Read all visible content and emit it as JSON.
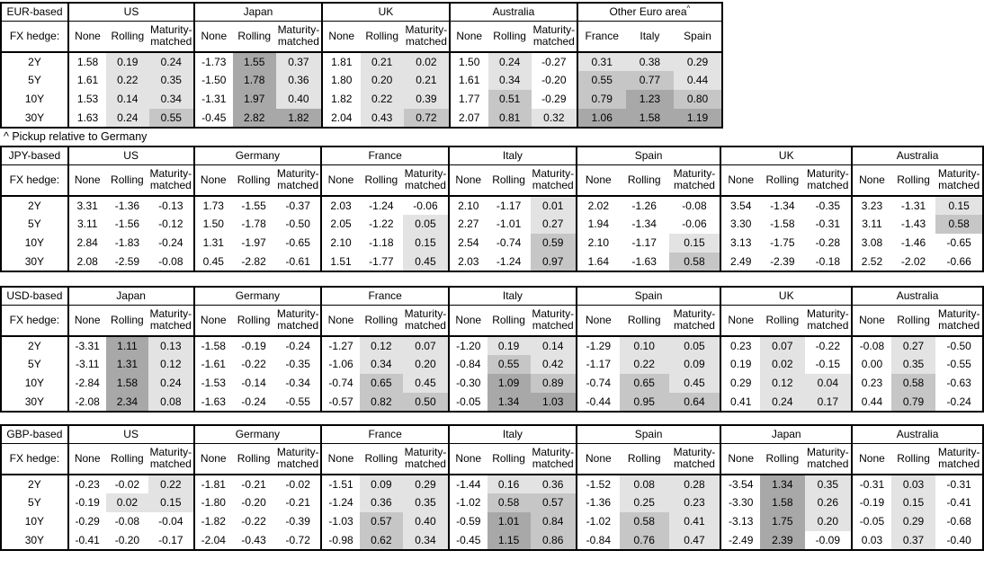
{
  "note": "^ Pickup relative to Germany",
  "hedge_label": "FX hedge:",
  "row_labels": [
    "2Y",
    "5Y",
    "10Y",
    "30Y"
  ],
  "subcols": [
    "None",
    "Rolling",
    "Maturity-matched"
  ],
  "heatmap": {
    "light": "#e3e3e3",
    "mid": "#c6c6c6",
    "dark": "#a8a8a8",
    "thresholds": [
      0,
      0.5,
      1.0
    ],
    "rule": "hedged and pickup columns only; value >= 0 shaded by band, negatives white"
  },
  "tables": [
    {
      "base": "EUR-based",
      "groups": [
        {
          "name": "US",
          "rows": [
            [
              "1.58",
              "0.19",
              "0.24"
            ],
            [
              "1.61",
              "0.22",
              "0.35"
            ],
            [
              "1.53",
              "0.14",
              "0.34"
            ],
            [
              "1.63",
              "0.24",
              "0.55"
            ]
          ]
        },
        {
          "name": "Japan",
          "rows": [
            [
              "-1.73",
              "1.55",
              "0.37"
            ],
            [
              "-1.50",
              "1.78",
              "0.36"
            ],
            [
              "-1.31",
              "1.97",
              "0.40"
            ],
            [
              "-0.45",
              "2.82",
              "1.82"
            ]
          ]
        },
        {
          "name": "UK",
          "rows": [
            [
              "1.81",
              "0.21",
              "0.02"
            ],
            [
              "1.80",
              "0.20",
              "0.21"
            ],
            [
              "1.82",
              "0.22",
              "0.39"
            ],
            [
              "2.04",
              "0.43",
              "0.72"
            ]
          ]
        },
        {
          "name": "Australia",
          "rows": [
            [
              "1.50",
              "0.24",
              "-0.27"
            ],
            [
              "1.61",
              "0.34",
              "-0.20"
            ],
            [
              "1.77",
              "0.51",
              "-0.29"
            ],
            [
              "2.07",
              "0.81",
              "0.32"
            ]
          ]
        },
        {
          "name": "Other Euro area",
          "sup": "^",
          "pickup": true,
          "sub": [
            "France",
            "Italy",
            "Spain"
          ],
          "rows": [
            [
              "0.31",
              "0.38",
              "0.29"
            ],
            [
              "0.55",
              "0.77",
              "0.44"
            ],
            [
              "0.79",
              "1.23",
              "0.80"
            ],
            [
              "1.06",
              "1.58",
              "1.19"
            ]
          ]
        }
      ]
    },
    {
      "base": "JPY-based",
      "groups": [
        {
          "name": "US",
          "rows": [
            [
              "3.31",
              "-1.36",
              "-0.13"
            ],
            [
              "3.11",
              "-1.56",
              "-0.12"
            ],
            [
              "2.84",
              "-1.83",
              "-0.24"
            ],
            [
              "2.08",
              "-2.59",
              "-0.08"
            ]
          ]
        },
        {
          "name": "Germany",
          "rows": [
            [
              "1.73",
              "-1.55",
              "-0.37"
            ],
            [
              "1.50",
              "-1.78",
              "-0.50"
            ],
            [
              "1.31",
              "-1.97",
              "-0.65"
            ],
            [
              "0.45",
              "-2.82",
              "-0.61"
            ]
          ]
        },
        {
          "name": "France",
          "rows": [
            [
              "2.03",
              "-1.24",
              "-0.06"
            ],
            [
              "2.05",
              "-1.22",
              "0.05"
            ],
            [
              "2.10",
              "-1.18",
              "0.15"
            ],
            [
              "1.51",
              "-1.77",
              "0.45"
            ]
          ]
        },
        {
          "name": "Italy",
          "rows": [
            [
              "2.10",
              "-1.17",
              "0.01"
            ],
            [
              "2.27",
              "-1.01",
              "0.27"
            ],
            [
              "2.54",
              "-0.74",
              "0.59"
            ],
            [
              "2.03",
              "-1.24",
              "0.97"
            ]
          ]
        },
        {
          "name": "Spain",
          "rows": [
            [
              "2.02",
              "-1.26",
              "-0.08"
            ],
            [
              "1.94",
              "-1.34",
              "-0.06"
            ],
            [
              "2.10",
              "-1.17",
              "0.15"
            ],
            [
              "1.64",
              "-1.63",
              "0.58"
            ]
          ]
        },
        {
          "name": "UK",
          "rows": [
            [
              "3.54",
              "-1.34",
              "-0.35"
            ],
            [
              "3.30",
              "-1.58",
              "-0.31"
            ],
            [
              "3.13",
              "-1.75",
              "-0.28"
            ],
            [
              "2.49",
              "-2.39",
              "-0.18"
            ]
          ]
        },
        {
          "name": "Australia",
          "rows": [
            [
              "3.23",
              "-1.31",
              "0.15"
            ],
            [
              "3.11",
              "-1.43",
              "0.58"
            ],
            [
              "3.08",
              "-1.46",
              "-0.65"
            ],
            [
              "2.52",
              "-2.02",
              "-0.66"
            ]
          ]
        }
      ]
    },
    {
      "base": "USD-based",
      "groups": [
        {
          "name": "Japan",
          "rows": [
            [
              "-3.31",
              "1.11",
              "0.13"
            ],
            [
              "-3.11",
              "1.31",
              "0.12"
            ],
            [
              "-2.84",
              "1.58",
              "0.24"
            ],
            [
              "-2.08",
              "2.34",
              "0.08"
            ]
          ]
        },
        {
          "name": "Germany",
          "rows": [
            [
              "-1.58",
              "-0.19",
              "-0.24"
            ],
            [
              "-1.61",
              "-0.22",
              "-0.35"
            ],
            [
              "-1.53",
              "-0.14",
              "-0.34"
            ],
            [
              "-1.63",
              "-0.24",
              "-0.55"
            ]
          ]
        },
        {
          "name": "France",
          "rows": [
            [
              "-1.27",
              "0.12",
              "0.07"
            ],
            [
              "-1.06",
              "0.34",
              "0.20"
            ],
            [
              "-0.74",
              "0.65",
              "0.45"
            ],
            [
              "-0.57",
              "0.82",
              "0.50"
            ]
          ]
        },
        {
          "name": "Italy",
          "rows": [
            [
              "-1.20",
              "0.19",
              "0.14"
            ],
            [
              "-0.84",
              "0.55",
              "0.42"
            ],
            [
              "-0.30",
              "1.09",
              "0.89"
            ],
            [
              "-0.05",
              "1.34",
              "1.03"
            ]
          ]
        },
        {
          "name": "Spain",
          "rows": [
            [
              "-1.29",
              "0.10",
              "0.05"
            ],
            [
              "-1.17",
              "0.22",
              "0.09"
            ],
            [
              "-0.74",
              "0.65",
              "0.45"
            ],
            [
              "-0.44",
              "0.95",
              "0.64"
            ]
          ]
        },
        {
          "name": "UK",
          "rows": [
            [
              "0.23",
              "0.07",
              "-0.22"
            ],
            [
              "0.19",
              "0.02",
              "-0.15"
            ],
            [
              "0.29",
              "0.12",
              "0.04"
            ],
            [
              "0.41",
              "0.24",
              "0.17"
            ]
          ]
        },
        {
          "name": "Australia",
          "rows": [
            [
              "-0.08",
              "0.27",
              "-0.50"
            ],
            [
              "0.00",
              "0.35",
              "-0.55"
            ],
            [
              "0.23",
              "0.58",
              "-0.63"
            ],
            [
              "0.44",
              "0.79",
              "-0.24"
            ]
          ]
        }
      ]
    },
    {
      "base": "GBP-based",
      "groups": [
        {
          "name": "US",
          "rows": [
            [
              "-0.23",
              "-0.02",
              "0.22"
            ],
            [
              "-0.19",
              "0.02",
              "0.15"
            ],
            [
              "-0.29",
              "-0.08",
              "-0.04"
            ],
            [
              "-0.41",
              "-0.20",
              "-0.17"
            ]
          ]
        },
        {
          "name": "Germany",
          "rows": [
            [
              "-1.81",
              "-0.21",
              "-0.02"
            ],
            [
              "-1.80",
              "-0.20",
              "-0.21"
            ],
            [
              "-1.82",
              "-0.22",
              "-0.39"
            ],
            [
              "-2.04",
              "-0.43",
              "-0.72"
            ]
          ]
        },
        {
          "name": "France",
          "rows": [
            [
              "-1.51",
              "0.09",
              "0.29"
            ],
            [
              "-1.24",
              "0.36",
              "0.35"
            ],
            [
              "-1.03",
              "0.57",
              "0.40"
            ],
            [
              "-0.98",
              "0.62",
              "0.34"
            ]
          ]
        },
        {
          "name": "Italy",
          "rows": [
            [
              "-1.44",
              "0.16",
              "0.36"
            ],
            [
              "-1.02",
              "0.58",
              "0.57"
            ],
            [
              "-0.59",
              "1.01",
              "0.84"
            ],
            [
              "-0.45",
              "1.15",
              "0.86"
            ]
          ]
        },
        {
          "name": "Spain",
          "rows": [
            [
              "-1.52",
              "0.08",
              "0.28"
            ],
            [
              "-1.36",
              "0.25",
              "0.23"
            ],
            [
              "-1.02",
              "0.58",
              "0.41"
            ],
            [
              "-0.84",
              "0.76",
              "0.47"
            ]
          ]
        },
        {
          "name": "Japan",
          "rows": [
            [
              "-3.54",
              "1.34",
              "0.35"
            ],
            [
              "-3.30",
              "1.58",
              "0.26"
            ],
            [
              "-3.13",
              "1.75",
              "0.20"
            ],
            [
              "-2.49",
              "2.39",
              "-0.09"
            ]
          ]
        },
        {
          "name": "Australia",
          "rows": [
            [
              "-0.31",
              "0.03",
              "-0.31"
            ],
            [
              "-0.19",
              "0.15",
              "-0.41"
            ],
            [
              "-0.05",
              "0.29",
              "-0.68"
            ],
            [
              "0.03",
              "0.37",
              "-0.40"
            ]
          ]
        }
      ]
    }
  ]
}
